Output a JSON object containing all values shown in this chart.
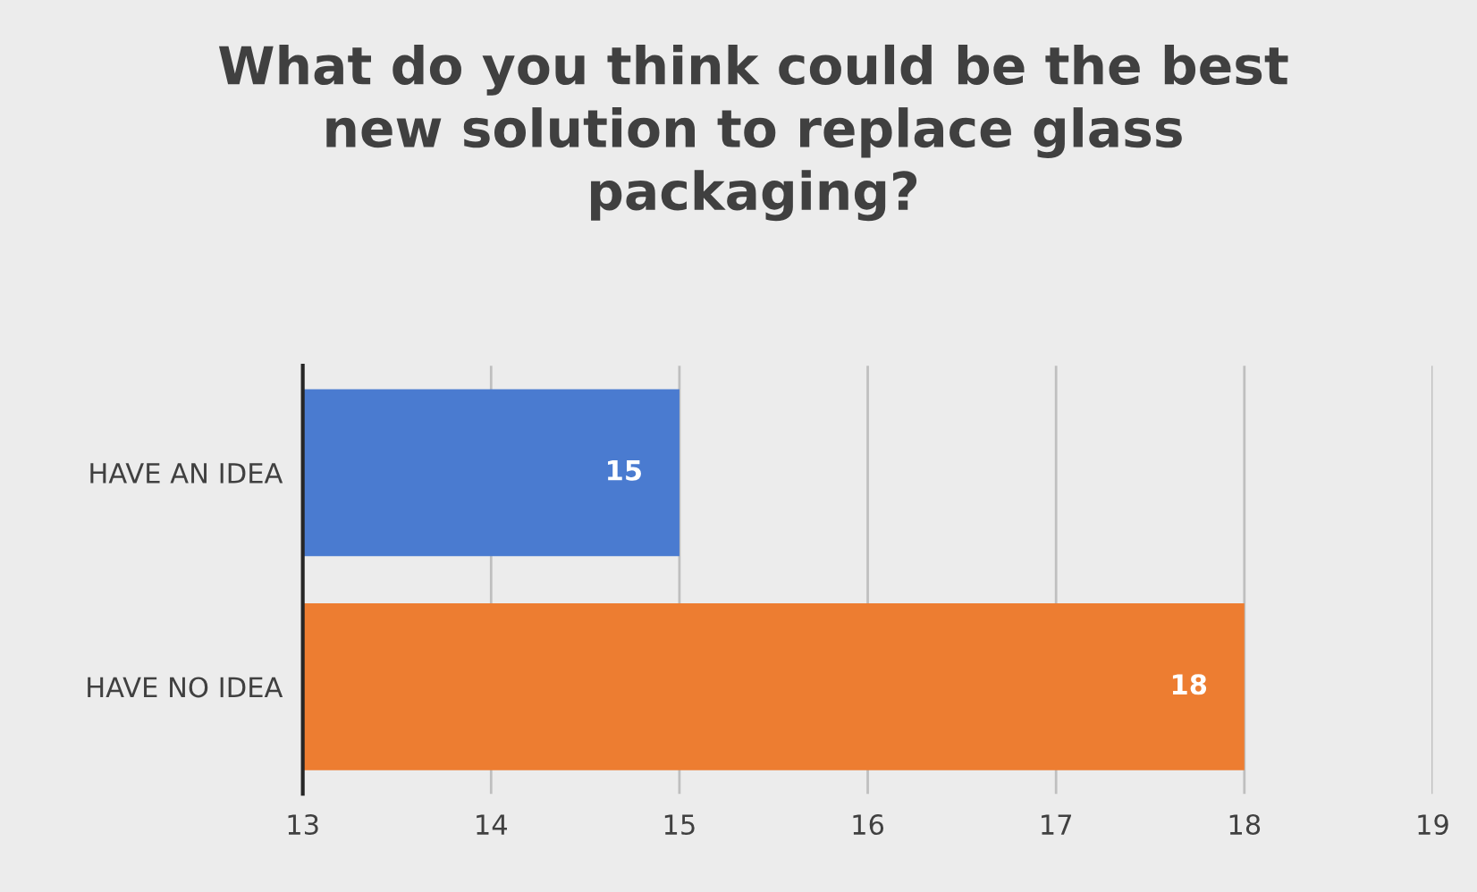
{
  "chart_data": {
    "type": "bar",
    "orientation": "horizontal",
    "title": "What do you think could be the best\nnew solution to replace glass\npackaging?",
    "categories": [
      "HAVE AN IDEA",
      "HAVE NO IDEA"
    ],
    "values": [
      15,
      18
    ],
    "colors": [
      "#4a7bd0",
      "#ed7d31"
    ],
    "xlim": [
      13,
      19
    ],
    "xticks": [
      13,
      14,
      15,
      16,
      17,
      18,
      19
    ],
    "grid": "x",
    "data_labels": true
  }
}
